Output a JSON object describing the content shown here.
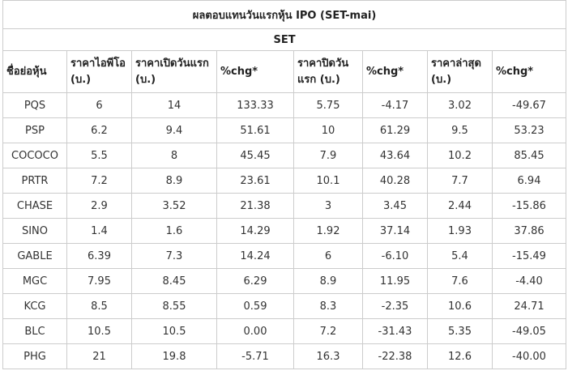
{
  "table": {
    "title": "ผลตอบแทนวันแรกหุ้น IPO (SET-mai)",
    "subtitle": "SET",
    "header": [
      "ชื่อย่อหุ้น",
      "ราคาไอพีโอ (บ.)",
      "ราคาเปิดวันแรก (บ.)",
      "%chg*",
      "ราคาปิดวันแรก (บ.)",
      "%chg*",
      "ราคาล่าสุด (บ.)",
      "%chg*"
    ],
    "rows": [
      [
        "PQS",
        "6",
        "14",
        "133.33",
        "5.75",
        "-4.17",
        "3.02",
        "-49.67"
      ],
      [
        "PSP",
        "6.2",
        "9.4",
        "51.61",
        "10",
        "61.29",
        "9.5",
        "53.23"
      ],
      [
        "COCOCO",
        "5.5",
        "8",
        "45.45",
        "7.9",
        "43.64",
        "10.2",
        "85.45"
      ],
      [
        "PRTR",
        "7.2",
        "8.9",
        "23.61",
        "10.1",
        "40.28",
        "7.7",
        "6.94"
      ],
      [
        "CHASE",
        "2.9",
        "3.52",
        "21.38",
        "3",
        "3.45",
        "2.44",
        "-15.86"
      ],
      [
        "SINO",
        "1.4",
        "1.6",
        "14.29",
        "1.92",
        "37.14",
        "1.93",
        "37.86"
      ],
      [
        "GABLE",
        "6.39",
        "7.3",
        "14.24",
        "6",
        "-6.10",
        "5.4",
        "-15.49"
      ],
      [
        "MGC",
        "7.95",
        "8.45",
        "6.29",
        "8.9",
        "11.95",
        "7.6",
        "-4.40"
      ],
      [
        "KCG",
        "8.5",
        "8.55",
        "0.59",
        "8.3",
        "-2.35",
        "10.6",
        "24.71"
      ],
      [
        "BLC",
        "10.5",
        "10.5",
        "0.00",
        "7.2",
        "-31.43",
        "5.35",
        "-49.05"
      ],
      [
        "PHG",
        "21",
        "19.8",
        "-5.71",
        "16.3",
        "-22.38",
        "12.6",
        "-40.00"
      ]
    ]
  }
}
